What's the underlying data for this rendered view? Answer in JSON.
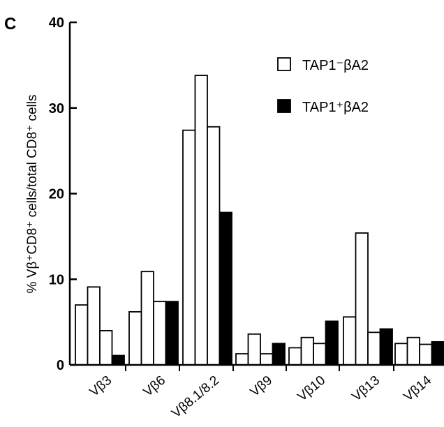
{
  "panel_label": "C",
  "chart_data": {
    "type": "bar",
    "ylabel": "% Vβ⁺CD8⁺ cells/total CD8⁺ cells",
    "ylim": [
      0,
      40
    ],
    "yticks": [
      0,
      10,
      20,
      30,
      40
    ],
    "grid": false,
    "legend_position": "top-right",
    "categories": [
      "Vβ3",
      "Vβ6",
      "Vβ8.1/8.2",
      "Vβ9",
      "Vβ10",
      "Vβ13",
      "Vβ14"
    ],
    "series": [
      {
        "name": "TAP1⁻βA2",
        "fill": "#ffffff",
        "values": [
          [
            7.0,
            9.1,
            4.0
          ],
          [
            6.2,
            10.9,
            7.4
          ],
          [
            27.4,
            33.8,
            27.8
          ],
          [
            1.3,
            3.6,
            1.3
          ],
          [
            2.0,
            3.2,
            2.5
          ],
          [
            5.6,
            15.4,
            3.8
          ],
          [
            2.5,
            3.2,
            2.4
          ]
        ]
      },
      {
        "name": "TAP1⁺βA2",
        "fill": "#000000",
        "values": [
          [
            1.1
          ],
          [
            7.4
          ],
          [
            17.8
          ],
          [
            2.5
          ],
          [
            5.1
          ],
          [
            4.2
          ],
          [
            2.7
          ]
        ]
      }
    ]
  }
}
